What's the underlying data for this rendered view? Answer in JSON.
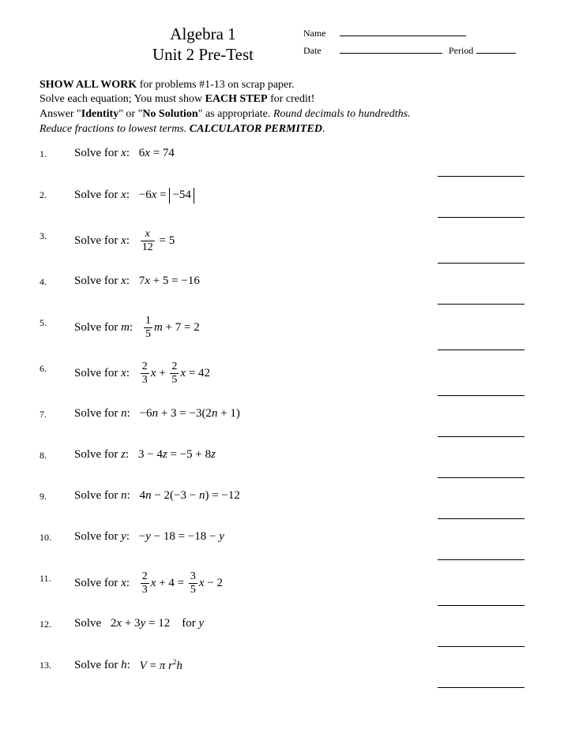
{
  "header": {
    "title_line1": "Algebra 1",
    "title_line2": "Unit 2 Pre-Test",
    "name_label": "Name",
    "date_label": "Date",
    "period_label": "Period"
  },
  "instructions": {
    "line1_bold": "SHOW ALL WORK",
    "line1_rest": " for problems #1-13 on scrap paper.",
    "line2_a": "Solve each equation; You must show ",
    "line2_bold": "EACH STEP",
    "line2_b": " for credit!",
    "line3_a": "Answer \"",
    "line3_b1": "Identity",
    "line3_b": "\" or \"",
    "line3_b2": "No Solution",
    "line3_c": "\" as appropriate.  ",
    "line3_i": "Round decimals to hundredths.",
    "line4_i": "Reduce fractions to lowest terms. ",
    "line4_bi": "CALCULATOR PERMITED",
    "line4_end": "."
  },
  "problems": [
    {
      "n": "1.",
      "label": "Solve for ",
      "var": "x",
      "eq_html": "6<span class='var'>x</span> = 74"
    },
    {
      "n": "2.",
      "label": "Solve for ",
      "var": "x",
      "eq_html": "−6<span class='var'>x</span> = <span class='abs'>−54</span>"
    },
    {
      "n": "3.",
      "label": "Solve for ",
      "var": "x",
      "eq_html": "<span class='frac'><span class='num'><span class='var'>x</span></span><span class='den'>12</span></span> = 5",
      "tall": true
    },
    {
      "n": "4.",
      "label": "Solve for ",
      "var": "x",
      "eq_html": "7<span class='var'>x</span> + 5 = −16"
    },
    {
      "n": "5.",
      "label": "Solve for ",
      "var": "m",
      "eq_html": "<span class='frac'><span class='num'>1</span><span class='den'>5</span></span><span class='var'>m</span> + 7 = 2",
      "tall": true
    },
    {
      "n": "6.",
      "label": "Solve for ",
      "var": "x",
      "eq_html": "<span class='frac'><span class='num'>2</span><span class='den'>3</span></span><span class='var'>x</span> + <span class='frac'><span class='num'>2</span><span class='den'>5</span></span><span class='var'>x</span> = 42",
      "tall": true
    },
    {
      "n": "7.",
      "label": "Solve for ",
      "var": "n",
      "eq_html": "−6<span class='var'>n</span> + 3 = −3(2<span class='var'>n</span> + 1)"
    },
    {
      "n": "8.",
      "label": "Solve for ",
      "var": "z",
      "eq_html": "3 − 4<span class='var'>z</span> = −5 + 8<span class='var'>z</span>"
    },
    {
      "n": "9.",
      "label": "Solve for ",
      "var": "n",
      "eq_html": "4<span class='var'>n</span> − 2(−3 − <span class='var'>n</span>) = −12"
    },
    {
      "n": "10.",
      "label": "Solve for ",
      "var": "y",
      "eq_html": "−<span class='var'>y</span> − 18 = −18 − <span class='var'>y</span>"
    },
    {
      "n": "11.",
      "label": "Solve for ",
      "var": "x",
      "eq_html": "<span class='frac'><span class='num'>2</span><span class='den'>3</span></span><span class='var'>x</span> + 4 = <span class='frac'><span class='num'>3</span><span class='den'>5</span></span><span class='var'>x</span> − 2",
      "tall": true
    },
    {
      "n": "12.",
      "label": "Solve ",
      "var": "",
      "eq_html": "2<span class='var'>x</span> + 3<span class='var'>y</span> = 12 &nbsp;&nbsp; for <span class='var'>y</span>"
    },
    {
      "n": "13.",
      "label": "Solve for ",
      "var": "h",
      "eq_html": "<span class='var'>V</span> = <span class='var'>π r</span><sup>2</sup><span class='var'>h</span>"
    }
  ]
}
